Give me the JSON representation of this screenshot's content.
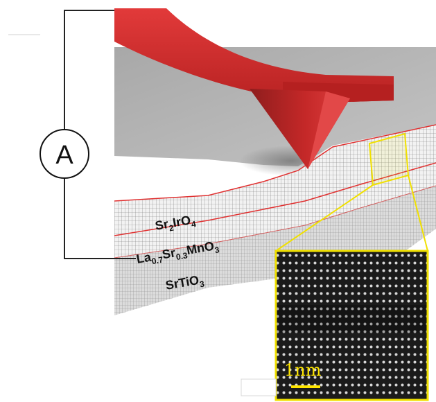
{
  "ammeter": {
    "symbol": "A"
  },
  "layers": {
    "top": {
      "base": "Sr",
      "sub1": "2",
      "mid": "IrO",
      "sub2": "4"
    },
    "middle": {
      "p1": "La",
      "s1": "0.7",
      "p2": "Sr",
      "s2": "0.3",
      "p3": "MnO",
      "s3": "3"
    },
    "substrate": {
      "base": "SrTiO",
      "sub": "3"
    }
  },
  "inset": {
    "scale_bar_label": "1nm"
  },
  "colors": {
    "cantilever": "#d92b2b",
    "highlight": "#f0e000",
    "interface_line": "#e03030",
    "circuit_wire": "#222222"
  }
}
